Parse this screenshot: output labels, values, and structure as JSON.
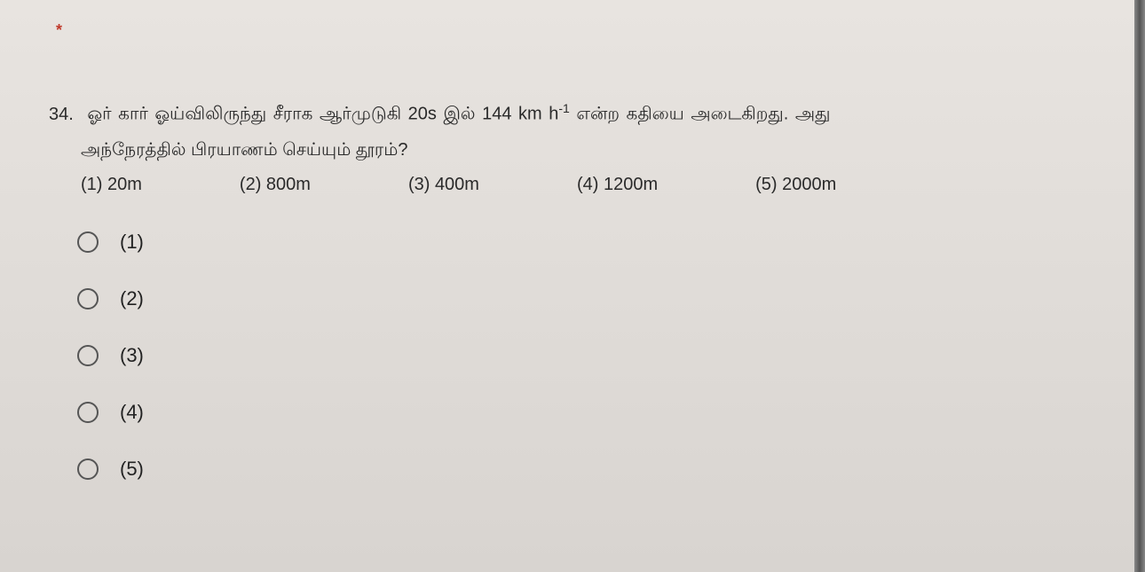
{
  "required_marker": "*",
  "question": {
    "number": "34.",
    "line1_part1": "ஓர் கார் ஓய்விலிருந்து சீராக ஆர்முடுகி 20s இல் 144 km h",
    "line1_exponent": "-1",
    "line1_part2": " என்ற கதியை அடைகிறது. அது",
    "line2": "அந்நேரத்தில் பிரயாணம் செய்யும் தூரம்?"
  },
  "inline_answers": [
    "(1) 20m",
    "(2) 800m",
    "(3) 400m",
    "(4) 1200m",
    "(5) 2000m"
  ],
  "radio_labels": [
    "(1)",
    "(2)",
    "(3)",
    "(4)",
    "(5)"
  ],
  "colors": {
    "background_top": "#e8e4e0",
    "background_bottom": "#d8d4d0",
    "text": "#2a2a2a",
    "required": "#c0392b",
    "radio_border": "#555555"
  }
}
